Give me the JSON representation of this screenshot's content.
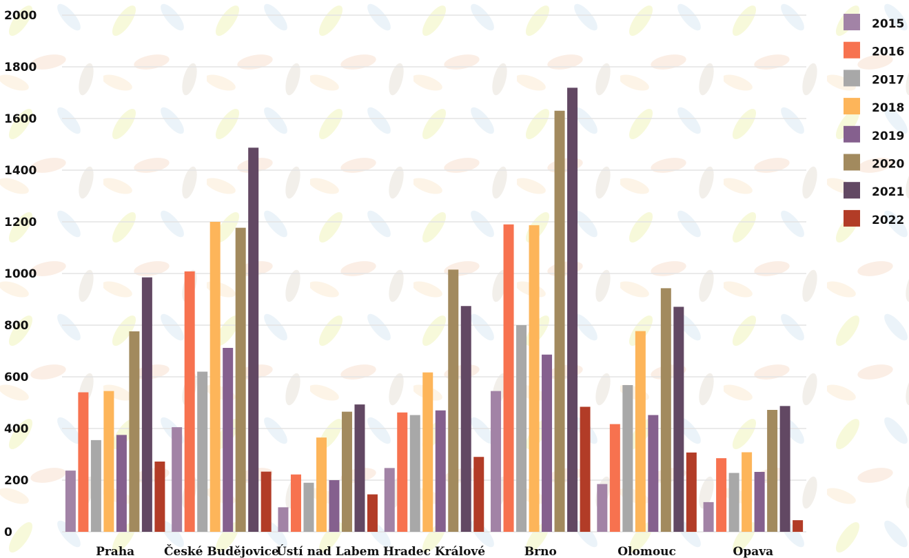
{
  "chart_data": {
    "type": "bar",
    "categories": [
      "Praha",
      "České Budějovice",
      "Ústí nad Labem",
      "Hradec Králové",
      "Brno",
      "Olomouc",
      "Opava"
    ],
    "series": [
      {
        "name": "2015",
        "color": "#a283a6",
        "values": [
          237,
          405,
          95,
          247,
          545,
          185,
          115
        ]
      },
      {
        "name": "2016",
        "color": "#f7724f",
        "values": [
          540,
          1008,
          222,
          462,
          1190,
          417,
          285
        ]
      },
      {
        "name": "2017",
        "color": "#a8a8a8",
        "values": [
          355,
          620,
          190,
          452,
          800,
          568,
          228
        ]
      },
      {
        "name": "2018",
        "color": "#fdb55a",
        "values": [
          545,
          1200,
          365,
          617,
          1187,
          777,
          308
        ]
      },
      {
        "name": "2019",
        "color": "#85608e",
        "values": [
          375,
          712,
          200,
          470,
          686,
          452,
          232
        ]
      },
      {
        "name": "2020",
        "color": "#a28a5e",
        "values": [
          776,
          1177,
          465,
          1015,
          1630,
          943,
          472
        ]
      },
      {
        "name": "2021",
        "color": "#624863",
        "values": [
          985,
          1487,
          493,
          874,
          1719,
          871,
          487
        ]
      },
      {
        "name": "2022",
        "color": "#b23c27",
        "values": [
          272,
          233,
          145,
          290,
          484,
          307,
          45
        ]
      }
    ],
    "y_ticks": [
      "0",
      "200",
      "400",
      "600",
      "800",
      "1000",
      "1200",
      "1400",
      "1600",
      "1800",
      "2000"
    ],
    "ylim": [
      0,
      2000
    ],
    "grid": true,
    "legend_position": "top-right"
  }
}
